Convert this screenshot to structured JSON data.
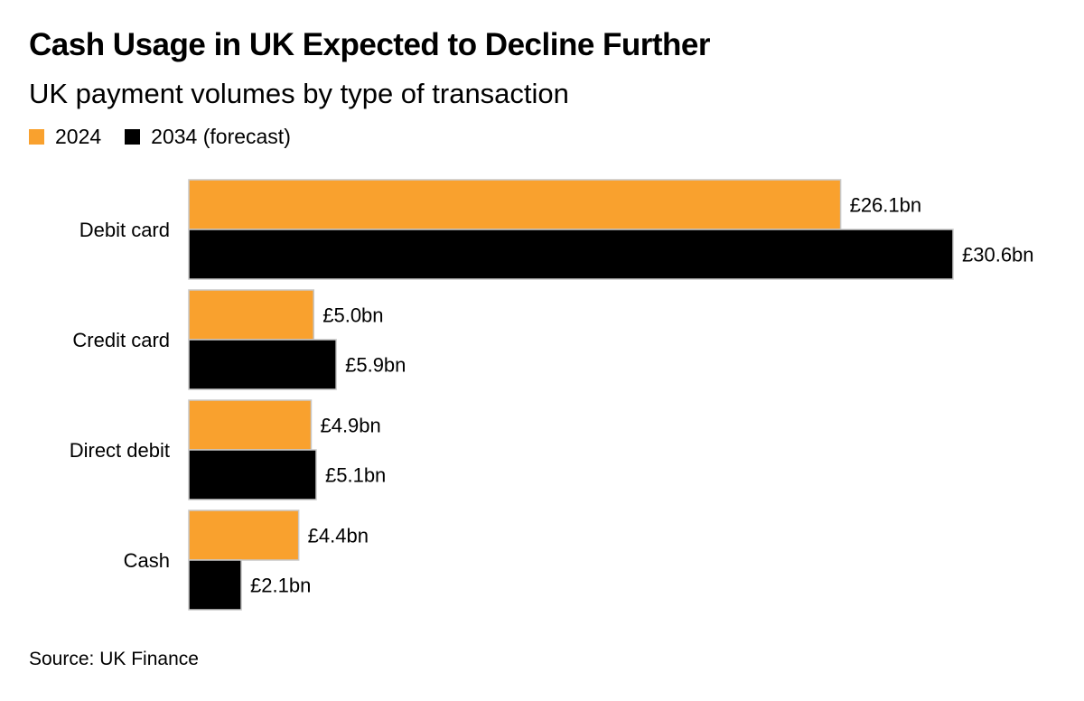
{
  "header": {
    "title": "Cash Usage in UK Expected to Decline Further",
    "subtitle": "UK payment volumes by type of transaction"
  },
  "footer": {
    "source": "Source: UK Finance"
  },
  "colors": {
    "series_2024": "#f9a12e",
    "series_2034": "#000000"
  },
  "chart_data": {
    "type": "bar",
    "orientation": "horizontal",
    "title": "Cash Usage in UK Expected to Decline Further",
    "subtitle": "UK payment volumes by type of transaction",
    "categories": [
      "Debit card",
      "Credit card",
      "Direct debit",
      "Cash"
    ],
    "series": [
      {
        "name": "2024",
        "color": "#f9a12e",
        "values": [
          26.1,
          5.0,
          4.9,
          4.4
        ],
        "labels": [
          "£26.1bn",
          "£5.0bn",
          "£4.9bn",
          "£4.4bn"
        ]
      },
      {
        "name": "2034 (forecast)",
        "color": "#000000",
        "values": [
          30.6,
          5.9,
          5.1,
          2.1
        ],
        "labels": [
          "£30.6bn",
          "£5.9bn",
          "£5.1bn",
          "£2.1bn"
        ]
      }
    ],
    "xlim": [
      0,
      30.6
    ],
    "grid": false,
    "legend_position": "top-left"
  }
}
